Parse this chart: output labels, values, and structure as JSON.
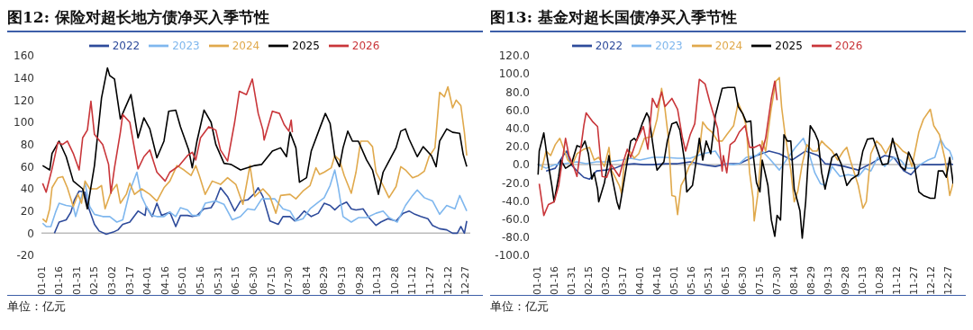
{
  "chart_data": [
    {
      "type": "line",
      "title": "图12: 保险对超长地方债净买入季节性",
      "annotations": [
        "单位：亿元"
      ],
      "legend": "top",
      "xlim": [
        "--01-01",
        "--12-31"
      ],
      "xticks": [
        {
          "value": "--01-01",
          "label": "01-01"
        },
        {
          "value": "--01-16",
          "label": "01-16"
        },
        {
          "value": "--01-31",
          "label": "01-31"
        },
        {
          "value": "--02-15",
          "label": "02-15"
        },
        {
          "value": "--03-02",
          "label": "03-02"
        },
        {
          "value": "--03-17",
          "label": "03-17"
        },
        {
          "value": "--04-01",
          "label": "04-01"
        },
        {
          "value": "--04-16",
          "label": "04-16"
        },
        {
          "value": "--05-01",
          "label": "05-01"
        },
        {
          "value": "--05-16",
          "label": "05-16"
        },
        {
          "value": "--05-31",
          "label": "05-31"
        },
        {
          "value": "--06-15",
          "label": "06-15"
        },
        {
          "value": "--06-30",
          "label": "06-30"
        },
        {
          "value": "--07-15",
          "label": "07-15"
        },
        {
          "value": "--07-30",
          "label": "07-30"
        },
        {
          "value": "--08-14",
          "label": "08-14"
        },
        {
          "value": "--08-29",
          "label": "08-29"
        },
        {
          "value": "--09-13",
          "label": "09-13"
        },
        {
          "value": "--09-28",
          "label": "09-28"
        },
        {
          "value": "--10-13",
          "label": "10-13"
        },
        {
          "value": "--10-28",
          "label": "10-28"
        },
        {
          "value": "--11-12",
          "label": "11-12"
        },
        {
          "value": "--11-27",
          "label": "11-27"
        },
        {
          "value": "--12-12",
          "label": "12-12"
        },
        {
          "value": "--12-27",
          "label": "12-27"
        }
      ],
      "ylim": [
        -20,
        160
      ],
      "yticks": [
        -20,
        0,
        20,
        40,
        60,
        80,
        100,
        120,
        140,
        160
      ],
      "series": [
        {
          "name": "2022",
          "color": "#2e4b9b",
          "x": [
            "--01-12",
            "--01-16",
            "--01-22",
            "--01-26",
            "--01-29",
            "--02-02",
            "--02-07",
            "--02-09",
            "--02-15",
            "--02-19",
            "--02-25",
            "--03-03",
            "--03-07",
            "--03-11",
            "--03-17",
            "--03-24",
            "--03-30",
            "--03-31",
            "--04-05",
            "--04-09",
            "--04-13",
            "--04-20",
            "--04-25",
            "--04-29",
            "--05-05",
            "--05-09",
            "--05-13",
            "--05-19",
            "--05-25",
            "--05-29",
            "--06-02",
            "--06-08",
            "--06-14",
            "--06-19",
            "--06-25",
            "--07-01",
            "--07-04",
            "--07-08",
            "--07-14",
            "--07-21",
            "--07-25",
            "--07-31",
            "--08-04",
            "--08-08",
            "--08-12",
            "--08-18",
            "--08-24",
            "--08-29",
            "--09-03",
            "--09-07",
            "--09-11",
            "--09-17",
            "--09-21",
            "--09-25",
            "--10-01",
            "--10-06",
            "--10-12",
            "--10-16",
            "--10-22",
            "--10-29",
            "--11-04",
            "--11-09",
            "--11-14",
            "--11-19",
            "--11-25",
            "--11-29",
            "--12-05",
            "--12-11",
            "--12-16",
            "--12-20",
            "--12-23",
            "--12-26",
            "--12-28"
          ],
          "values": [
            0,
            10,
            12,
            19,
            30,
            38,
            37,
            26,
            8,
            2,
            -1,
            1,
            3,
            8,
            10,
            20,
            16,
            24,
            15,
            27,
            16,
            19,
            6,
            16,
            16,
            15,
            16,
            22,
            23,
            30,
            41,
            33,
            20,
            29,
            30,
            36,
            41,
            33,
            11,
            8,
            15,
            15,
            11,
            15,
            20,
            15,
            18,
            27,
            25,
            21,
            25,
            28,
            22,
            21,
            22,
            14,
            7,
            10,
            13,
            11,
            18,
            20,
            17,
            15,
            13,
            7,
            4,
            3,
            0,
            0,
            6,
            0,
            11
          ]
        },
        {
          "name": "2023",
          "color": "#7fb7ee",
          "x": [
            "--01-02",
            "--01-05",
            "--01-09",
            "--01-13",
            "--01-16",
            "--01-22",
            "--01-28",
            "--01-30",
            "--02-04",
            "--02-07",
            "--02-11",
            "--02-15",
            "--02-22",
            "--02-28",
            "--03-06",
            "--03-11",
            "--03-17",
            "--03-23",
            "--03-27",
            "--03-31",
            "--04-05",
            "--04-09",
            "--04-15",
            "--04-20",
            "--04-25",
            "--04-29",
            "--05-05",
            "--05-09",
            "--05-15",
            "--05-20",
            "--05-29",
            "--06-05",
            "--06-12",
            "--06-19",
            "--06-25",
            "--07-01",
            "--07-07",
            "--07-18",
            "--07-25",
            "--07-31",
            "--08-05",
            "--08-11",
            "--08-17",
            "--08-24",
            "--08-29",
            "--09-03",
            "--09-07",
            "--09-10",
            "--09-14",
            "--09-21",
            "--09-27",
            "--10-04",
            "--10-12",
            "--10-18",
            "--10-23",
            "--10-30",
            "--11-06",
            "--11-12",
            "--11-16",
            "--11-22",
            "--11-29",
            "--12-05",
            "--12-11",
            "--12-18",
            "--12-22",
            "--12-28"
          ],
          "values": [
            9,
            6,
            6,
            19,
            27,
            25,
            24,
            15,
            33,
            45,
            24,
            17,
            15,
            15,
            10,
            12,
            38,
            55,
            33,
            24,
            16,
            15,
            15,
            19,
            15,
            23,
            21,
            16,
            16,
            27,
            29,
            26,
            12,
            15,
            22,
            21,
            31,
            31,
            22,
            20,
            11,
            13,
            22,
            28,
            32,
            43,
            57,
            41,
            15,
            10,
            14,
            14,
            18,
            20,
            14,
            10,
            25,
            34,
            39,
            32,
            29,
            17,
            25,
            22,
            34,
            20
          ]
        },
        {
          "name": "2024",
          "color": "#e0a94c",
          "x": [
            "--01-02",
            "--01-05",
            "--01-08",
            "--01-10",
            "--01-15",
            "--01-19",
            "--01-23",
            "--01-28",
            "--02-01",
            "--02-04",
            "--02-07",
            "--02-11",
            "--02-17",
            "--02-21",
            "--02-24",
            "--03-01",
            "--03-06",
            "--03-09",
            "--03-14",
            "--03-17",
            "--03-21",
            "--03-27",
            "--04-03",
            "--04-09",
            "--04-15",
            "--04-20",
            "--04-26",
            "--05-02",
            "--05-08",
            "--05-12",
            "--05-15",
            "--05-20",
            "--05-26",
            "--06-02",
            "--06-08",
            "--06-15",
            "--06-21",
            "--06-27",
            "--07-01",
            "--07-08",
            "--07-14",
            "--07-19",
            "--07-23",
            "--07-31",
            "--08-05",
            "--08-11",
            "--08-17",
            "--08-22",
            "--08-25",
            "--08-29",
            "--09-04",
            "--09-07",
            "--09-11",
            "--09-15",
            "--09-21",
            "--09-25",
            "--09-29",
            "--10-05",
            "--10-09",
            "--10-12",
            "--10-18",
            "--10-23",
            "--10-29",
            "--11-02",
            "--11-06",
            "--11-12",
            "--11-17",
            "--11-22",
            "--11-26",
            "--12-01",
            "--12-05",
            "--12-09",
            "--12-12",
            "--12-16",
            "--12-19",
            "--12-23",
            "--12-26",
            "--12-28"
          ],
          "values": [
            13,
            10,
            22,
            41,
            50,
            51,
            41,
            24,
            35,
            27,
            47,
            40,
            40,
            43,
            22,
            37,
            44,
            27,
            35,
            45,
            35,
            40,
            35,
            29,
            41,
            47,
            61,
            57,
            52,
            61,
            52,
            35,
            47,
            44,
            50,
            44,
            26,
            61,
            33,
            40,
            33,
            18,
            34,
            35,
            31,
            38,
            43,
            59,
            53,
            55,
            59,
            70,
            66,
            52,
            36,
            55,
            83,
            83,
            78,
            55,
            43,
            32,
            42,
            60,
            57,
            50,
            52,
            56,
            69,
            77,
            127,
            123,
            132,
            113,
            120,
            115,
            91,
            70
          ]
        },
        {
          "name": "2025",
          "color": "#000000",
          "x": [
            "--01-02",
            "--01-08",
            "--01-10",
            "--01-16",
            "--01-22",
            "--01-28",
            "--02-05",
            "--02-09",
            "--02-15",
            "--02-21",
            "--02-26",
            "--02-28",
            "--03-04",
            "--03-09",
            "--03-11",
            "--03-18",
            "--03-24",
            "--03-29",
            "--04-03",
            "--04-09",
            "--04-15",
            "--04-19",
            "--04-25",
            "--04-29",
            "--05-06",
            "--05-09",
            "--05-13",
            "--05-19",
            "--05-25",
            "--05-29",
            "--06-05",
            "--06-11",
            "--06-19",
            "--06-25",
            "--07-01",
            "--07-07",
            "--07-16",
            "--07-23",
            "--07-28",
            "--07-31",
            "--08-05",
            "--08-08",
            "--08-14",
            "--08-18",
            "--08-25",
            "--08-30",
            "--09-03",
            "--09-07",
            "--09-11",
            "--09-14",
            "--09-18",
            "--09-22",
            "--09-27",
            "--10-04",
            "--10-09",
            "--10-14",
            "--10-18",
            "--10-22",
            "--10-29",
            "--11-02",
            "--11-06",
            "--11-09",
            "--11-16",
            "--11-21",
            "--11-28",
            "--12-02",
            "--12-05",
            "--12-11",
            "--12-16",
            "--12-22",
            "--12-25",
            "--12-28"
          ],
          "values": [
            61,
            57,
            72,
            83,
            69,
            47,
            40,
            22,
            61,
            122,
            149,
            142,
            139,
            103,
            108,
            125,
            86,
            104,
            94,
            68,
            83,
            110,
            111,
            96,
            75,
            59,
            83,
            111,
            100,
            80,
            63,
            62,
            57,
            59,
            61,
            62,
            74,
            77,
            69,
            91,
            77,
            46,
            50,
            74,
            94,
            108,
            99,
            69,
            60,
            77,
            92,
            83,
            83,
            66,
            57,
            35,
            55,
            63,
            77,
            92,
            94,
            85,
            69,
            78,
            70,
            60,
            83,
            94,
            91,
            90,
            71,
            60
          ]
        },
        {
          "name": "2026",
          "color": "#c9363a",
          "x": [
            "--01-02",
            "--01-05",
            "--01-10",
            "--01-15",
            "--01-19",
            "--01-23",
            "--01-28",
            "--02-02",
            "--02-05",
            "--02-09",
            "--02-12",
            "--02-15",
            "--02-22",
            "--02-27",
            "--03-01",
            "--03-04",
            "--03-09",
            "--03-11",
            "--03-17",
            "--03-24",
            "--03-29",
            "--04-03",
            "--04-09",
            "--04-16",
            "--04-20",
            "--04-28",
            "--05-05",
            "--05-09",
            "--05-12",
            "--05-16",
            "--05-23",
            "--05-29",
            "--06-02",
            "--06-08",
            "--06-14",
            "--06-18",
            "--06-24",
            "--06-29",
            "--07-04",
            "--07-08",
            "--07-09",
            "--07-16",
            "--07-22",
            "--07-26",
            "--07-30",
            "--08-01",
            "--08-02"
          ],
          "values": [
            45,
            37,
            58,
            82,
            80,
            83,
            72,
            57,
            86,
            93,
            119,
            89,
            80,
            62,
            36,
            59,
            91,
            107,
            100,
            58,
            69,
            75,
            55,
            47,
            55,
            61,
            70,
            73,
            66,
            86,
            96,
            93,
            75,
            65,
            100,
            128,
            125,
            139,
            108,
            93,
            84,
            110,
            108,
            98,
            92,
            102,
            91
          ]
        }
      ]
    },
    {
      "type": "line",
      "title": "图13: 基金对超长国债净买入季节性",
      "annotations": [
        "单位：亿元"
      ],
      "legend": "top",
      "xlim": [
        "--01-01",
        "--12-31"
      ],
      "xticks": [
        {
          "value": "--01-01",
          "label": "01-01"
        },
        {
          "value": "--01-16",
          "label": "01-16"
        },
        {
          "value": "--01-31",
          "label": "01-31"
        },
        {
          "value": "--02-15",
          "label": "02-15"
        },
        {
          "value": "--03-02",
          "label": "03-02"
        },
        {
          "value": "--03-17",
          "label": "03-17"
        },
        {
          "value": "--04-01",
          "label": "04-01"
        },
        {
          "value": "--04-16",
          "label": "04-16"
        },
        {
          "value": "--05-01",
          "label": "05-01"
        },
        {
          "value": "--05-16",
          "label": "05-16"
        },
        {
          "value": "--05-31",
          "label": "05-31"
        },
        {
          "value": "--06-15",
          "label": "06-15"
        },
        {
          "value": "--06-30",
          "label": "06-30"
        },
        {
          "value": "--07-15",
          "label": "07-15"
        },
        {
          "value": "--07-30",
          "label": "07-30"
        },
        {
          "value": "--08-14",
          "label": "08-14"
        },
        {
          "value": "--08-29",
          "label": "08-29"
        },
        {
          "value": "--09-13",
          "label": "09-13"
        },
        {
          "value": "--09-28",
          "label": "09-28"
        },
        {
          "value": "--10-13",
          "label": "10-13"
        },
        {
          "value": "--10-28",
          "label": "10-28"
        },
        {
          "value": "--11-12",
          "label": "11-12"
        },
        {
          "value": "--11-27",
          "label": "11-27"
        },
        {
          "value": "--12-12",
          "label": "12-12"
        },
        {
          "value": "--12-27",
          "label": "12-27"
        }
      ],
      "ylim": [
        -100,
        120
      ],
      "yticks": [
        {
          "value": -100,
          "label": "-100.0"
        },
        {
          "value": -80,
          "label": "-80.0"
        },
        {
          "value": -60,
          "label": "-60.0"
        },
        {
          "value": -40,
          "label": "-40.0"
        },
        {
          "value": -20,
          "label": "-20.0"
        },
        {
          "value": 0,
          "label": "0.0"
        },
        {
          "value": 20,
          "label": "20.0"
        },
        {
          "value": 40,
          "label": "40.0"
        },
        {
          "value": 60,
          "label": "60.0"
        },
        {
          "value": 80,
          "label": "80.0"
        },
        {
          "value": 100,
          "label": "100.0"
        },
        {
          "value": 120,
          "label": "120.0"
        }
      ],
      "series": [
        {
          "name": "2022",
          "color": "#2e4b9b",
          "x": [
            "--01-09",
            "--01-17",
            "--01-24",
            "--01-27",
            "--01-31",
            "--02-05",
            "--02-11",
            "--02-16",
            "--02-22",
            "--03-02",
            "--03-10",
            "--03-18",
            "--03-27",
            "--04-04",
            "--04-12",
            "--04-23",
            "--05-04",
            "--05-15",
            "--05-26",
            "--06-06",
            "--06-17",
            "--06-27",
            "--07-12",
            "--07-23",
            "--08-01",
            "--08-12",
            "--08-24",
            "--09-04",
            "--09-10",
            "--09-19",
            "--09-27",
            "--10-09",
            "--10-20",
            "--11-01",
            "--11-09",
            "--11-18",
            "--11-24",
            "--12-02",
            "--12-11",
            "--12-20",
            "--12-28",
            "--12-31"
          ],
          "values": [
            -7,
            -4,
            10,
            15,
            0,
            -7,
            -14,
            -16,
            -7,
            -6,
            -4,
            0,
            1,
            0,
            0,
            1,
            1,
            3,
            0,
            -2,
            1,
            1,
            10,
            15,
            12,
            5,
            15,
            10,
            1,
            0,
            -2,
            -6,
            1,
            10,
            8,
            -7,
            -11,
            0,
            0,
            0,
            1,
            0
          ]
        },
        {
          "name": "2023",
          "color": "#7fb7ee",
          "x": [
            "--01-02",
            "--01-09",
            "--01-17",
            "--01-25",
            "--02-05",
            "--02-13",
            "--02-22",
            "--03-05",
            "--03-16",
            "--03-24",
            "--04-01",
            "--04-12",
            "--04-23",
            "--05-04",
            "--05-15",
            "--05-26",
            "--06-06",
            "--06-13",
            "--06-22",
            "--06-27",
            "--07-03",
            "--07-12",
            "--07-17",
            "--07-23",
            "--08-01",
            "--08-07",
            "--08-15",
            "--08-22",
            "--08-27",
            "--09-01",
            "--09-06",
            "--09-10",
            "--09-16",
            "--09-23",
            "--09-30",
            "--10-09",
            "--10-15",
            "--10-20",
            "--10-26",
            "--11-01",
            "--11-09",
            "--11-15",
            "--11-21",
            "--11-27",
            "--12-02",
            "--12-09",
            "--12-15",
            "--12-20",
            "--12-24",
            "--12-28",
            "--12-31"
          ],
          "values": [
            0,
            -4,
            0,
            1,
            3,
            1,
            3,
            3,
            5,
            7,
            5,
            8,
            8,
            7,
            7,
            12,
            15,
            1,
            0,
            1,
            8,
            10,
            15,
            7,
            -6,
            5,
            19,
            29,
            12,
            -9,
            -21,
            -23,
            -2,
            -13,
            -11,
            -13,
            -4,
            -7,
            8,
            -2,
            8,
            5,
            -4,
            -4,
            0,
            5,
            8,
            28,
            19,
            15,
            5
          ]
        },
        {
          "name": "2024",
          "color": "#e0a94c",
          "x": [
            "--01-05",
            "--01-09",
            "--01-13",
            "--01-17",
            "--01-21",
            "--01-24",
            "--01-28",
            "--02-01",
            "--02-05",
            "--02-11",
            "--02-16",
            "--02-20",
            "--02-24",
            "--03-01",
            "--03-05",
            "--03-07",
            "--03-10",
            "--03-14",
            "--03-16",
            "--03-18",
            "--03-23",
            "--03-27",
            "--03-31",
            "--04-05",
            "--04-12",
            "--04-16",
            "--04-20",
            "--04-23",
            "--04-26",
            "--04-29",
            "--05-02",
            "--05-04",
            "--05-07",
            "--05-10",
            "--05-14",
            "--05-18",
            "--05-23",
            "--05-26",
            "--05-30",
            "--06-03",
            "--06-08",
            "--06-12",
            "--06-16",
            "--06-22",
            "--06-26",
            "--06-30",
            "--07-03",
            "--07-06",
            "--07-09",
            "--07-10",
            "--07-13",
            "--07-17",
            "--07-20",
            "--07-25",
            "--07-29",
            "--08-01",
            "--08-03",
            "--08-06",
            "--08-11",
            "--08-14",
            "--08-17",
            "--08-21",
            "--08-25",
            "--08-30",
            "--09-03",
            "--09-07",
            "--09-10",
            "--09-16",
            "--09-21",
            "--09-26",
            "--09-29",
            "--10-02",
            "--10-09",
            "--10-13",
            "--10-16",
            "--10-20",
            "--10-25",
            "--10-29",
            "--11-02",
            "--11-08",
            "--11-12",
            "--11-17",
            "--11-21",
            "--11-25",
            "--12-01",
            "--12-05",
            "--12-11",
            "--12-14",
            "--12-19",
            "--12-24",
            "--12-28",
            "--12-31"
          ],
          "values": [
            -6,
            15,
            10,
            22,
            29,
            19,
            5,
            0,
            12,
            17,
            19,
            5,
            8,
            -2,
            19,
            -6,
            -13,
            -23,
            -32,
            -2,
            15,
            7,
            12,
            29,
            31,
            50,
            84,
            61,
            29,
            -34,
            -35,
            -55,
            -23,
            -16,
            -2,
            5,
            15,
            47,
            40,
            36,
            26,
            26,
            33,
            43,
            68,
            56,
            43,
            -9,
            -37,
            -62,
            -34,
            26,
            15,
            63,
            92,
            96,
            63,
            33,
            -6,
            -41,
            -30,
            1,
            22,
            15,
            15,
            26,
            22,
            15,
            5,
            15,
            19,
            5,
            -23,
            -48,
            -41,
            12,
            26,
            21,
            12,
            26,
            22,
            15,
            12,
            -2,
            36,
            50,
            61,
            43,
            33,
            5,
            -34,
            -20
          ]
        },
        {
          "name": "2025",
          "color": "#000000",
          "x": [
            "--01-02",
            "--01-03",
            "--01-07",
            "--01-10",
            "--01-14",
            "--01-16",
            "--01-20",
            "--01-22",
            "--01-26",
            "--01-31",
            "--02-05",
            "--02-09",
            "--02-12",
            "--02-15",
            "--02-18",
            "--02-20",
            "--02-23",
            "--02-24",
            "--03-01",
            "--03-05",
            "--03-07",
            "--03-12",
            "--03-14",
            "--03-17",
            "--03-20",
            "--03-24",
            "--03-27",
            "--03-29",
            "--04-03",
            "--04-07",
            "--04-09",
            "--04-14",
            "--04-16",
            "--04-22",
            "--04-25",
            "--04-29",
            "--05-03",
            "--05-06",
            "--05-10",
            "--05-12",
            "--05-17",
            "--05-21",
            "--05-23",
            "--05-26",
            "--05-29",
            "--06-02",
            "--06-06",
            "--06-12",
            "--06-17",
            "--06-23",
            "--06-26",
            "--06-30",
            "--07-03",
            "--07-07",
            "--07-09",
            "--07-12",
            "--07-15",
            "--07-17",
            "--07-22",
            "--07-25",
            "--07-28",
            "--07-30",
            "--08-02",
            "--08-05",
            "--08-08",
            "--08-11",
            "--08-14",
            "--08-17",
            "--08-19",
            "--08-21",
            "--08-24",
            "--08-28",
            "--09-01",
            "--09-04",
            "--09-07",
            "--09-10",
            "--09-13",
            "--09-16",
            "--09-20",
            "--09-24",
            "--09-29",
            "--10-03",
            "--10-09",
            "--10-13",
            "--10-17",
            "--10-22",
            "--10-26",
            "--10-30",
            "--11-04",
            "--11-08",
            "--11-11",
            "--11-15",
            "--11-19",
            "--11-22",
            "--11-27",
            "--12-01",
            "--12-05",
            "--12-11",
            "--12-15",
            "--12-18",
            "--12-22",
            "--12-25",
            "--12-28",
            "--12-31"
          ],
          "values": [
            -11,
            15,
            35,
            8,
            -23,
            -41,
            -13,
            5,
            -4,
            0,
            21,
            19,
            26,
            12,
            -16,
            -9,
            -27,
            -41,
            -20,
            10,
            -9,
            -41,
            -49,
            -27,
            -4,
            26,
            29,
            26,
            45,
            57,
            52,
            8,
            -6,
            3,
            26,
            45,
            47,
            38,
            5,
            -30,
            -23,
            10,
            29,
            5,
            26,
            12,
            54,
            84,
            85,
            85,
            64,
            56,
            47,
            48,
            12,
            -20,
            -30,
            5,
            -23,
            -61,
            -79,
            -56,
            -61,
            33,
            26,
            26,
            -27,
            -41,
            -51,
            -81,
            -41,
            43,
            35,
            26,
            -9,
            -27,
            -9,
            8,
            12,
            1,
            -23,
            -16,
            -11,
            15,
            28,
            29,
            15,
            0,
            1,
            29,
            15,
            -2,
            -6,
            14,
            0,
            -30,
            -34,
            -37,
            -37,
            -7,
            -7,
            -14,
            8,
            -21
          ]
        },
        {
          "name": "2026",
          "color": "#c9363a",
          "x": [
            "--01-03",
            "--01-07",
            "--01-11",
            "--01-16",
            "--01-20",
            "--01-26",
            "--01-29",
            "--02-02",
            "--02-05",
            "--02-11",
            "--02-13",
            "--02-19",
            "--02-23",
            "--02-27",
            "--03-03",
            "--03-07",
            "--03-14",
            "--03-17",
            "--03-21",
            "--03-24",
            "--03-29",
            "--04-04",
            "--04-08",
            "--04-12",
            "--04-16",
            "--04-20",
            "--04-23",
            "--04-29",
            "--05-04",
            "--05-08",
            "--05-11",
            "--05-15",
            "--05-19",
            "--05-23",
            "--05-28",
            "--06-01",
            "--06-08",
            "--06-12",
            "--06-13",
            "--06-16",
            "--06-19",
            "--06-23",
            "--06-27",
            "--07-02",
            "--07-06",
            "--07-10",
            "--07-15",
            "--07-17",
            "--07-20",
            "--07-25",
            "--07-28",
            "--07-30"
          ],
          "values": [
            -21,
            -56,
            -44,
            -41,
            -23,
            29,
            10,
            -2,
            -13,
            43,
            57,
            47,
            42,
            -13,
            -14,
            0,
            -13,
            1,
            17,
            8,
            26,
            42,
            17,
            73,
            63,
            80,
            64,
            73,
            61,
            31,
            15,
            33,
            45,
            94,
            89,
            70,
            40,
            -7,
            10,
            -9,
            22,
            26,
            36,
            43,
            19,
            19,
            22,
            15,
            29,
            73,
            92,
            71
          ]
        }
      ]
    }
  ]
}
